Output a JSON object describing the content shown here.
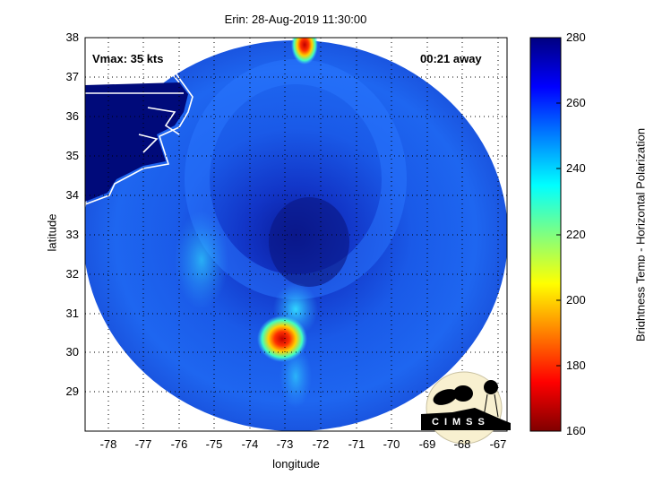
{
  "title": "Erin: 28-Aug-2019 11:30:00",
  "annotations": {
    "vmax": "Vmax: 35 kts",
    "time_away": "00:21 away"
  },
  "axes": {
    "xlabel": "longitude",
    "ylabel": "latitude",
    "xlim": [
      -78.7,
      -66.8
    ],
    "ylim": [
      28.0,
      38.0
    ],
    "xticks": [
      "-78",
      "-77",
      "-76",
      "-75",
      "-74",
      "-73",
      "-72",
      "-71",
      "-70",
      "-69",
      "-68",
      "-67"
    ],
    "yticks": [
      "38",
      "37",
      "36",
      "35",
      "34",
      "33",
      "32",
      "31",
      "30",
      "29"
    ],
    "grid": "dotted"
  },
  "colorbar": {
    "label": "Brightness Temp - Horizontal Polarization",
    "range": [
      160,
      280
    ],
    "ticks": [
      "280",
      "260",
      "240",
      "220",
      "200",
      "180",
      "160"
    ],
    "colormap": "jet"
  },
  "features": {
    "storm_center": {
      "lon": -72.5,
      "lat": 33.0
    },
    "cold_spot_south": {
      "lon": -73.2,
      "lat": 30.3,
      "min_temp": 175
    },
    "cold_spot_north": {
      "lon": -72.6,
      "lat": 37.8,
      "min_temp": 185
    }
  },
  "logo": {
    "text": "CIMSS"
  }
}
